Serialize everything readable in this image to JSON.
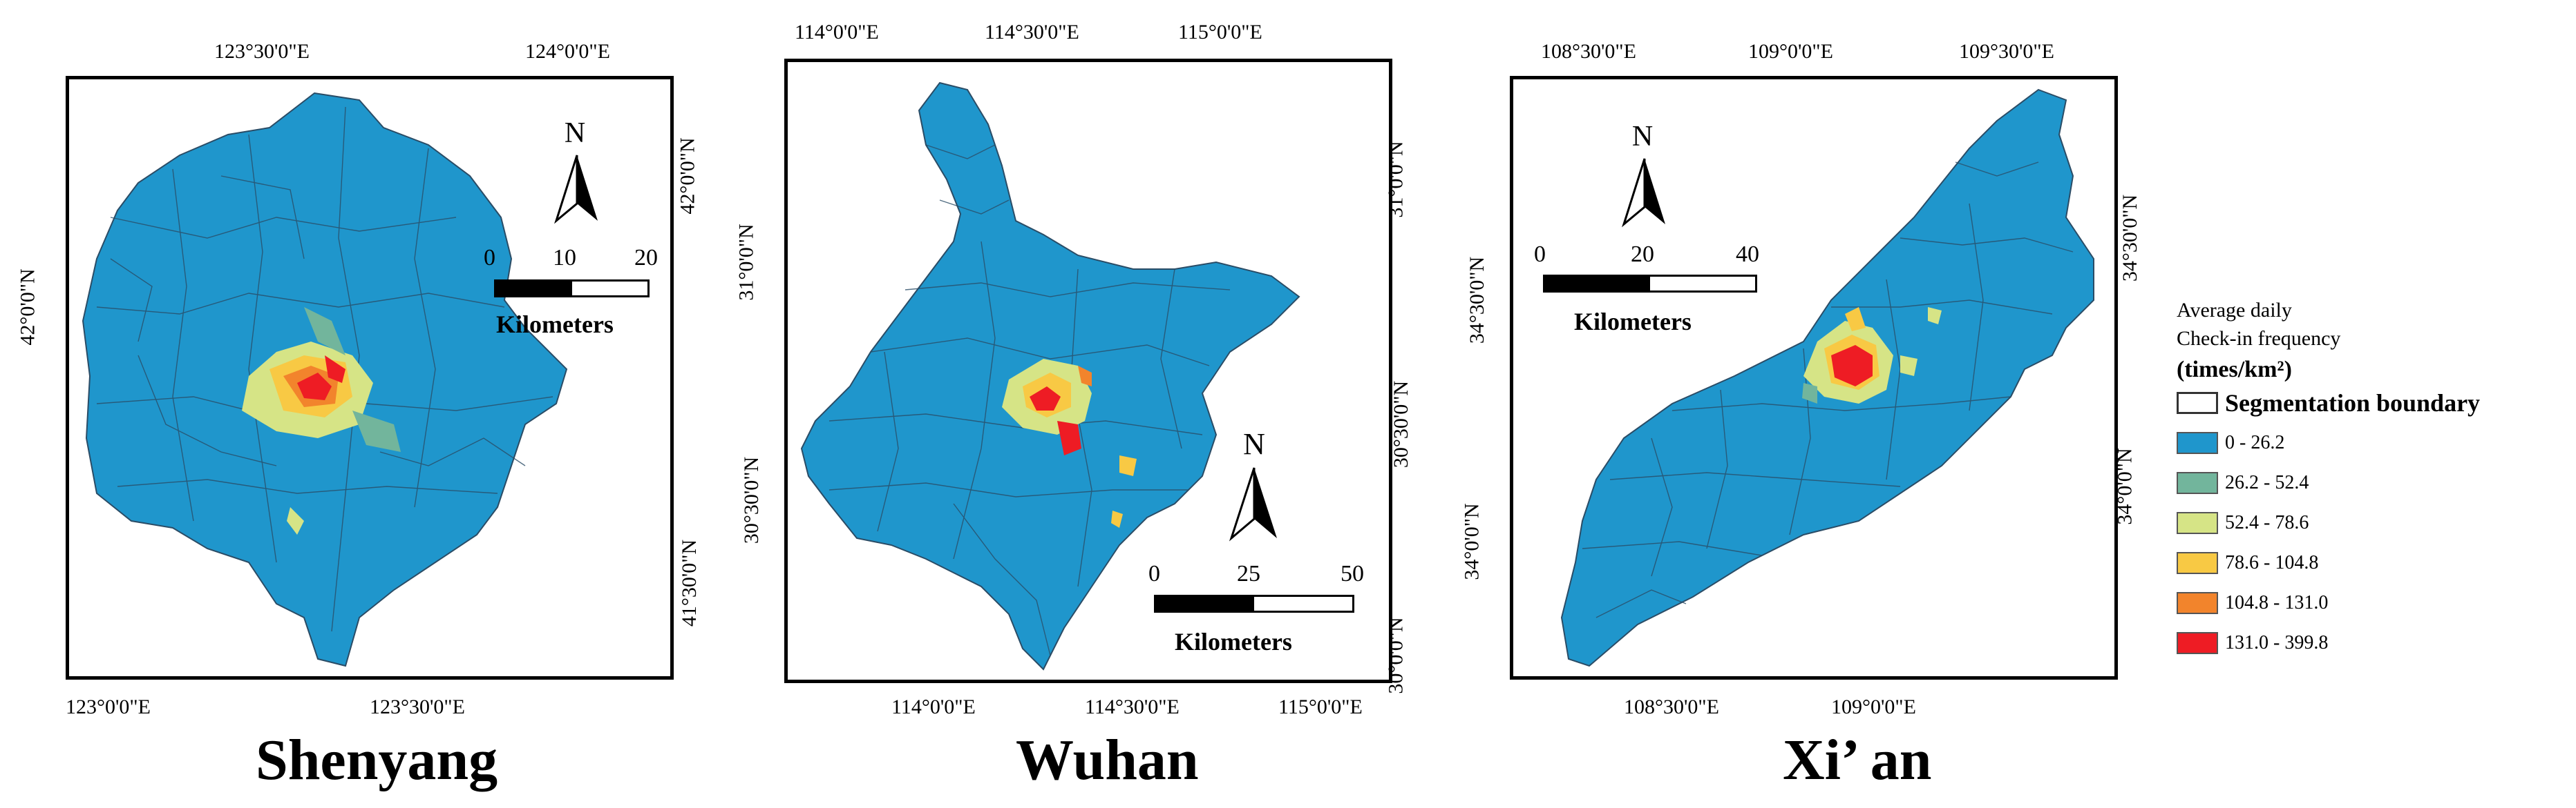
{
  "maps": [
    {
      "id": "shenyang",
      "title": "Shenyang",
      "top_ticks": [
        "123°30'0\"E",
        "124°0'0\"E"
      ],
      "bottom_ticks": [
        "123°0'0\"E",
        "123°30'0\"E"
      ],
      "left_ticks": [
        "42°0'0\"N"
      ],
      "right_ticks": [
        "42°0'0\"N",
        "41°30'0\"N"
      ],
      "scale_labels": [
        "0",
        "10",
        "20"
      ],
      "scale_unit": "Kilometers",
      "north_label": "N"
    },
    {
      "id": "wuhan",
      "title": "Wuhan",
      "top_ticks": [
        "114°0'0\"E",
        "114°30'0\"E",
        "115°0'0\"E"
      ],
      "bottom_ticks": [
        "114°0'0\"E",
        "114°30'0\"E",
        "115°0'0\"E"
      ],
      "left_ticks": [
        "31°0'0\"N",
        "30°30'0\"N"
      ],
      "right_ticks": [
        "31°0'0\"N",
        "30°30'0\"N",
        "30°0'0\"N"
      ],
      "scale_labels": [
        "0",
        "25",
        "50"
      ],
      "scale_unit": "Kilometers",
      "north_label": "N"
    },
    {
      "id": "xian",
      "title": "Xi’ an",
      "top_ticks": [
        "108°30'0\"E",
        "109°0'0\"E",
        "109°30'0\"E"
      ],
      "bottom_ticks": [
        "108°30'0\"E",
        "109°0'0\"E"
      ],
      "left_ticks": [
        "34°30'0\"N",
        "34°0'0\"N"
      ],
      "right_ticks": [
        "34°30'0\"N",
        "34°0'0\"N"
      ],
      "scale_labels": [
        "0",
        "20",
        "40"
      ],
      "scale_unit": "Kilometers",
      "north_label": "N"
    }
  ],
  "legend": {
    "title_line1": "Average daily",
    "title_line2": "Check-in frequency",
    "unit": "(times/km²)",
    "boundary_label": "Segmentation boundary",
    "classes": [
      {
        "label": "0 - 26.2",
        "color": "#1f96cc"
      },
      {
        "label": "26.2 - 52.4",
        "color": "#72b59c"
      },
      {
        "label": "52.4 - 78.6",
        "color": "#d6e486"
      },
      {
        "label": "78.6 - 104.8",
        "color": "#f8c944"
      },
      {
        "label": "104.8 - 131.0",
        "color": "#f2842c"
      },
      {
        "label": "131.0 - 399.8",
        "color": "#ee1c24"
      }
    ]
  }
}
